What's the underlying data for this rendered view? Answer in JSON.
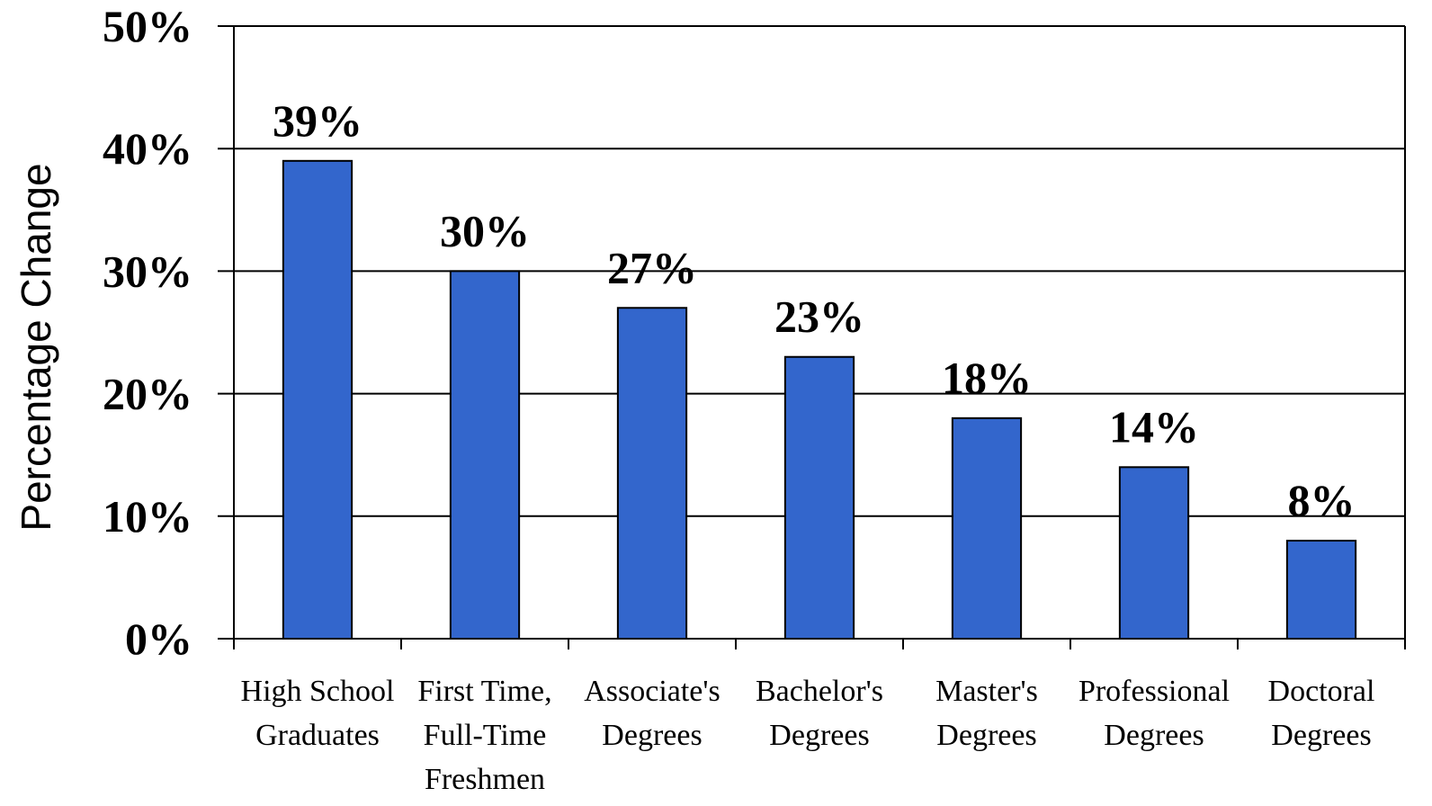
{
  "chart_data": {
    "type": "bar",
    "title": "",
    "xlabel": "",
    "ylabel": "Percentage Change",
    "ylim": [
      0,
      50
    ],
    "yticks": [
      0,
      10,
      20,
      30,
      40,
      50
    ],
    "ytick_labels": [
      "0%",
      "10%",
      "20%",
      "30%",
      "40%",
      "50%"
    ],
    "grid": true,
    "legend": "none",
    "bar_color": "#3366CC",
    "categories": [
      [
        "High School",
        "Graduates"
      ],
      [
        "First Time,",
        "Full-Time",
        "Freshmen"
      ],
      [
        "Associate's",
        "Degrees"
      ],
      [
        "Bachelor's",
        "Degrees"
      ],
      [
        "Master's",
        "Degrees"
      ],
      [
        "Professional",
        "Degrees"
      ],
      [
        "Doctoral",
        "Degrees"
      ]
    ],
    "values": [
      39,
      30,
      27,
      23,
      18,
      14,
      8
    ],
    "value_labels": [
      "39%",
      "30%",
      "27%",
      "23%",
      "18%",
      "14%",
      "8%"
    ]
  }
}
